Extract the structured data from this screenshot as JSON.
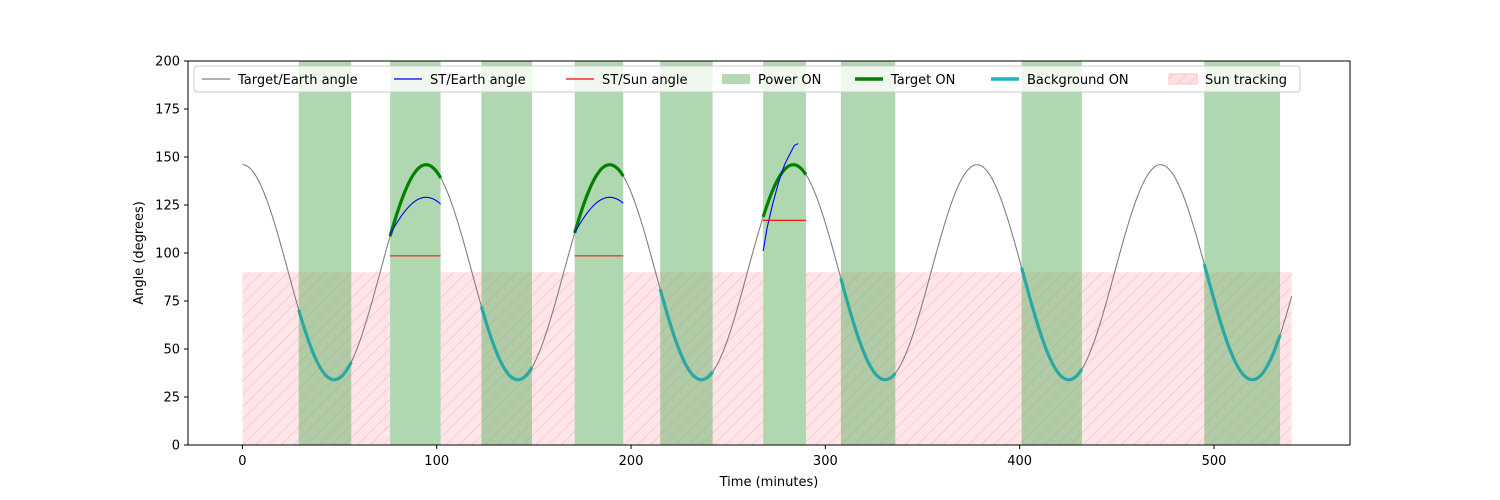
{
  "chart_data": {
    "type": "line",
    "title": "",
    "xlabel": "Time (minutes)",
    "ylabel": "Angle (degrees)",
    "xlim": [
      -28,
      570
    ],
    "ylim": [
      0,
      200
    ],
    "x_ticks": [
      0,
      100,
      200,
      300,
      400,
      500
    ],
    "y_ticks": [
      0,
      25,
      50,
      75,
      100,
      125,
      150,
      175,
      200
    ],
    "grid": false,
    "legend_position": "top",
    "target_earth": {
      "name": "Target/Earth angle",
      "color": "#808080",
      "period": 94.5,
      "mean": 90,
      "amplitude": 56,
      "peak_time": 0,
      "t_start": 0,
      "t_end": 540
    },
    "power_on_intervals": [
      [
        29,
        56
      ],
      [
        76,
        102
      ],
      [
        123,
        149
      ],
      [
        171,
        196
      ],
      [
        215,
        242
      ],
      [
        268,
        290
      ],
      [
        308,
        336
      ],
      [
        401,
        432
      ],
      [
        495,
        534
      ]
    ],
    "target_on_intervals": [
      [
        76,
        102
      ],
      [
        171,
        196
      ],
      [
        268,
        290
      ]
    ],
    "background_on_intervals": [
      [
        29,
        56
      ],
      [
        123,
        149
      ],
      [
        215,
        242
      ],
      [
        308,
        336
      ],
      [
        401,
        432
      ],
      [
        495,
        534
      ]
    ],
    "sun_tracking": {
      "level": 90,
      "intervals": [
        [
          0,
          76
        ],
        [
          102,
          171
        ],
        [
          196,
          268
        ],
        [
          290,
          540
        ]
      ]
    },
    "st_earth_segments": [
      {
        "t_start": 76,
        "t_end": 102,
        "mean": 100,
        "amplitude": 29,
        "peak_time": 94.5,
        "period": 94.5
      },
      {
        "t_start": 171,
        "t_end": 196,
        "mean": 100,
        "amplitude": 29,
        "peak_time": 189,
        "period": 94.5
      },
      {
        "t_start": 268,
        "t_end": 286,
        "values": [
          [
            268,
            101
          ],
          [
            270,
            113
          ],
          [
            273,
            126
          ],
          [
            276,
            137
          ],
          [
            279,
            146
          ],
          [
            282,
            152
          ],
          [
            284,
            156
          ],
          [
            286,
            157
          ]
        ]
      }
    ],
    "st_sun_segments": [
      {
        "t_start": 76,
        "t_end": 102,
        "value": 98.5
      },
      {
        "t_start": 171,
        "t_end": 196,
        "value": 98.5
      },
      {
        "t_start": 268,
        "t_end": 290,
        "value": 117
      }
    ],
    "legend": [
      {
        "label": "Target/Earth angle",
        "style": "line",
        "color": "#808080"
      },
      {
        "label": "ST/Earth angle",
        "style": "line",
        "color": "#0000ff"
      },
      {
        "label": "ST/Sun angle",
        "style": "line",
        "color": "#ff0000"
      },
      {
        "label": "Power ON",
        "style": "patch",
        "color": "#b3d8b3"
      },
      {
        "label": "Target ON",
        "style": "thick-line",
        "color": "#008000"
      },
      {
        "label": "Background ON",
        "style": "thick-line",
        "color": "#1ab8b8"
      },
      {
        "label": "Sun tracking",
        "style": "hatch-patch",
        "color": "#ffb6c1"
      }
    ],
    "colors": {
      "power_on": "#b3d8b3",
      "target_on": "#008000",
      "background_on": "#2aa8a4",
      "sun_fill": "#ffe0e4",
      "sun_hatch": "#ffc0c8",
      "st_earth": "#0000ff",
      "st_sun": "#ff0000",
      "target_earth": "#808080"
    }
  }
}
